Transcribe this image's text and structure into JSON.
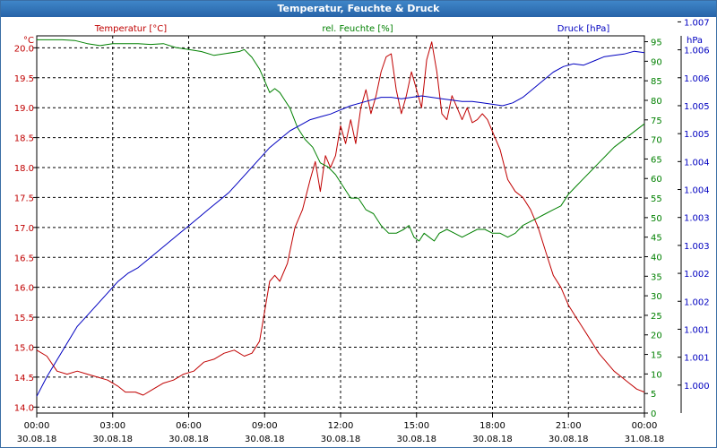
{
  "window": {
    "title": "Temperatur, Feuchte & Druck"
  },
  "chart_data": {
    "type": "line",
    "title": "Temperatur, Feuchte & Druck",
    "grid": true,
    "legend_position": "top",
    "colors": {
      "temperature": "#c00000",
      "humidity": "#008000",
      "pressure": "#0000c0",
      "axis": "#000000",
      "grid": "#000000"
    },
    "x_ticks": [
      {
        "h": 0,
        "time": "00:00",
        "date": "30.08.18"
      },
      {
        "h": 3,
        "time": "03:00",
        "date": "30.08.18"
      },
      {
        "h": 6,
        "time": "06:00",
        "date": "30.08.18"
      },
      {
        "h": 9,
        "time": "09:00",
        "date": "30.08.18"
      },
      {
        "h": 12,
        "time": "12:00",
        "date": "30.08.18"
      },
      {
        "h": 15,
        "time": "15:00",
        "date": "30.08.18"
      },
      {
        "h": 18,
        "time": "18:00",
        "date": "30.08.18"
      },
      {
        "h": 21,
        "time": "21:00",
        "date": "30.08.18"
      },
      {
        "h": 24,
        "time": "00:00",
        "date": "31.08.18"
      }
    ],
    "xlim": [
      0,
      24
    ],
    "axes": {
      "temperature": {
        "label": "Temperatur [°C]",
        "unit": "°C",
        "ylim": [
          13.9,
          20.2
        ],
        "ticks": [
          "14.0",
          "14.5",
          "15.0",
          "15.5",
          "16.0",
          "16.5",
          "17.0",
          "17.5",
          "18.0",
          "18.5",
          "19.0",
          "19.5",
          "20.0"
        ]
      },
      "humidity": {
        "label": "rel. Feuchte [%]",
        "unit": "%",
        "ylim": [
          0,
          96.5
        ],
        "ticks": [
          "0",
          "5",
          "10",
          "15",
          "20",
          "25",
          "30",
          "35",
          "40",
          "45",
          "50",
          "55",
          "60",
          "65",
          "70",
          "75",
          "80",
          "85",
          "90",
          "95"
        ]
      },
      "pressure": {
        "label": "Druck [hPa]",
        "unit": "hPa",
        "ylim": [
          0,
          13.5
        ],
        "ticks": [
          "1.000",
          "1.001",
          "1.001",
          "1.002",
          "1.002",
          "1.003",
          "1.003",
          "1.004",
          "1.004",
          "1.005",
          "1.005",
          "1.006",
          "1.006",
          "1.007"
        ]
      }
    },
    "series": [
      {
        "name": "Temperatur [°C]",
        "key": "temperature",
        "axis": "temperature",
        "points": [
          [
            0,
            14.95
          ],
          [
            0.4,
            14.85
          ],
          [
            0.8,
            14.6
          ],
          [
            1.2,
            14.55
          ],
          [
            1.6,
            14.6
          ],
          [
            2,
            14.55
          ],
          [
            2.4,
            14.5
          ],
          [
            2.8,
            14.45
          ],
          [
            3.2,
            14.35
          ],
          [
            3.5,
            14.25
          ],
          [
            3.9,
            14.25
          ],
          [
            4.2,
            14.2
          ],
          [
            4.6,
            14.3
          ],
          [
            5,
            14.4
          ],
          [
            5.4,
            14.45
          ],
          [
            5.8,
            14.55
          ],
          [
            6.2,
            14.6
          ],
          [
            6.6,
            14.75
          ],
          [
            7,
            14.8
          ],
          [
            7.4,
            14.9
          ],
          [
            7.8,
            14.95
          ],
          [
            8.2,
            14.85
          ],
          [
            8.5,
            14.9
          ],
          [
            8.8,
            15.1
          ],
          [
            9.0,
            15.6
          ],
          [
            9.2,
            16.1
          ],
          [
            9.4,
            16.2
          ],
          [
            9.6,
            16.1
          ],
          [
            9.9,
            16.4
          ],
          [
            10.2,
            17.0
          ],
          [
            10.5,
            17.3
          ],
          [
            10.8,
            17.8
          ],
          [
            11.0,
            18.1
          ],
          [
            11.2,
            17.6
          ],
          [
            11.4,
            18.2
          ],
          [
            11.6,
            18.0
          ],
          [
            11.8,
            18.2
          ],
          [
            12.0,
            18.7
          ],
          [
            12.2,
            18.4
          ],
          [
            12.4,
            18.8
          ],
          [
            12.6,
            18.4
          ],
          [
            12.8,
            19.0
          ],
          [
            13.0,
            19.3
          ],
          [
            13.2,
            18.9
          ],
          [
            13.4,
            19.2
          ],
          [
            13.6,
            19.6
          ],
          [
            13.8,
            19.85
          ],
          [
            14.0,
            19.9
          ],
          [
            14.2,
            19.3
          ],
          [
            14.4,
            18.9
          ],
          [
            14.6,
            19.2
          ],
          [
            14.8,
            19.6
          ],
          [
            15.0,
            19.3
          ],
          [
            15.2,
            19.0
          ],
          [
            15.4,
            19.8
          ],
          [
            15.6,
            20.1
          ],
          [
            15.8,
            19.6
          ],
          [
            16.0,
            18.9
          ],
          [
            16.2,
            18.8
          ],
          [
            16.4,
            19.2
          ],
          [
            16.6,
            19.0
          ],
          [
            16.8,
            18.8
          ],
          [
            17.0,
            19.0
          ],
          [
            17.2,
            18.75
          ],
          [
            17.4,
            18.8
          ],
          [
            17.6,
            18.9
          ],
          [
            17.8,
            18.8
          ],
          [
            18.0,
            18.6
          ],
          [
            18.3,
            18.3
          ],
          [
            18.6,
            17.8
          ],
          [
            18.9,
            17.6
          ],
          [
            19.2,
            17.5
          ],
          [
            19.5,
            17.3
          ],
          [
            19.8,
            17.0
          ],
          [
            20.1,
            16.6
          ],
          [
            20.4,
            16.2
          ],
          [
            20.7,
            16.0
          ],
          [
            21.0,
            15.7
          ],
          [
            21.3,
            15.5
          ],
          [
            21.6,
            15.3
          ],
          [
            21.9,
            15.1
          ],
          [
            22.2,
            14.9
          ],
          [
            22.5,
            14.75
          ],
          [
            22.8,
            14.6
          ],
          [
            23.1,
            14.5
          ],
          [
            23.4,
            14.4
          ],
          [
            23.7,
            14.3
          ],
          [
            24.0,
            14.25
          ]
        ]
      },
      {
        "name": "rel. Feuchte [%]",
        "key": "humidity",
        "axis": "humidity",
        "points": [
          [
            0,
            95.5
          ],
          [
            0.5,
            95.5
          ],
          [
            1.0,
            95.5
          ],
          [
            1.5,
            95.3
          ],
          [
            2.0,
            94.5
          ],
          [
            2.5,
            94
          ],
          [
            3.0,
            94.5
          ],
          [
            3.5,
            94.5
          ],
          [
            4.0,
            94.5
          ],
          [
            4.5,
            94.3
          ],
          [
            5.0,
            94.5
          ],
          [
            5.5,
            93.5
          ],
          [
            6.0,
            93
          ],
          [
            6.5,
            92.5
          ],
          [
            7.0,
            91.5
          ],
          [
            7.5,
            92
          ],
          [
            8.0,
            92.5
          ],
          [
            8.2,
            93
          ],
          [
            8.5,
            91
          ],
          [
            8.8,
            88
          ],
          [
            9.0,
            85
          ],
          [
            9.2,
            82
          ],
          [
            9.4,
            83
          ],
          [
            9.6,
            82
          ],
          [
            9.8,
            80
          ],
          [
            10.0,
            78
          ],
          [
            10.3,
            73
          ],
          [
            10.6,
            70
          ],
          [
            10.9,
            68
          ],
          [
            11.2,
            64
          ],
          [
            11.5,
            63
          ],
          [
            11.8,
            61
          ],
          [
            12.1,
            58
          ],
          [
            12.4,
            55
          ],
          [
            12.7,
            55
          ],
          [
            13.0,
            52
          ],
          [
            13.3,
            51
          ],
          [
            13.6,
            48
          ],
          [
            13.9,
            46
          ],
          [
            14.2,
            46
          ],
          [
            14.5,
            47
          ],
          [
            14.7,
            48
          ],
          [
            14.9,
            45
          ],
          [
            15.1,
            44
          ],
          [
            15.3,
            46
          ],
          [
            15.5,
            45
          ],
          [
            15.7,
            44
          ],
          [
            15.9,
            46
          ],
          [
            16.2,
            47
          ],
          [
            16.5,
            46
          ],
          [
            16.8,
            45
          ],
          [
            17.1,
            46
          ],
          [
            17.4,
            47
          ],
          [
            17.7,
            47
          ],
          [
            18.0,
            46
          ],
          [
            18.3,
            46
          ],
          [
            18.6,
            45
          ],
          [
            18.9,
            46
          ],
          [
            19.2,
            48
          ],
          [
            19.5,
            49
          ],
          [
            19.8,
            50
          ],
          [
            20.1,
            51
          ],
          [
            20.4,
            52
          ],
          [
            20.7,
            53
          ],
          [
            21.0,
            56
          ],
          [
            21.3,
            58
          ],
          [
            21.6,
            60
          ],
          [
            21.9,
            62
          ],
          [
            22.2,
            64
          ],
          [
            22.5,
            66
          ],
          [
            22.8,
            68
          ],
          [
            23.1,
            69.5
          ],
          [
            23.4,
            71
          ],
          [
            23.7,
            72.5
          ],
          [
            24.0,
            74
          ]
        ]
      },
      {
        "name": "Druck [hPa]",
        "key": "pressure",
        "axis": "pressure",
        "points": [
          [
            0,
            0.6
          ],
          [
            0.4,
            1.3
          ],
          [
            0.8,
            1.9
          ],
          [
            1.2,
            2.5
          ],
          [
            1.6,
            3.1
          ],
          [
            2.0,
            3.5
          ],
          [
            2.4,
            3.9
          ],
          [
            2.8,
            4.3
          ],
          [
            3.2,
            4.7
          ],
          [
            3.6,
            5.0
          ],
          [
            4.0,
            5.2
          ],
          [
            4.4,
            5.5
          ],
          [
            4.8,
            5.8
          ],
          [
            5.2,
            6.1
          ],
          [
            5.6,
            6.4
          ],
          [
            6.0,
            6.7
          ],
          [
            6.4,
            7.0
          ],
          [
            6.8,
            7.3
          ],
          [
            7.2,
            7.6
          ],
          [
            7.6,
            7.9
          ],
          [
            8.0,
            8.3
          ],
          [
            8.4,
            8.7
          ],
          [
            8.8,
            9.1
          ],
          [
            9.2,
            9.5
          ],
          [
            9.6,
            9.8
          ],
          [
            10.0,
            10.1
          ],
          [
            10.4,
            10.3
          ],
          [
            10.8,
            10.5
          ],
          [
            11.2,
            10.6
          ],
          [
            11.6,
            10.7
          ],
          [
            12.0,
            10.85
          ],
          [
            12.4,
            11.0
          ],
          [
            12.8,
            11.1
          ],
          [
            13.2,
            11.2
          ],
          [
            13.6,
            11.3
          ],
          [
            14.0,
            11.3
          ],
          [
            14.4,
            11.25
          ],
          [
            14.8,
            11.3
          ],
          [
            15.2,
            11.35
          ],
          [
            15.6,
            11.3
          ],
          [
            16.0,
            11.25
          ],
          [
            16.4,
            11.2
          ],
          [
            16.8,
            11.15
          ],
          [
            17.2,
            11.15
          ],
          [
            17.6,
            11.1
          ],
          [
            18.0,
            11.05
          ],
          [
            18.4,
            11.0
          ],
          [
            18.8,
            11.1
          ],
          [
            19.2,
            11.3
          ],
          [
            19.6,
            11.6
          ],
          [
            20.0,
            11.9
          ],
          [
            20.4,
            12.2
          ],
          [
            20.8,
            12.4
          ],
          [
            21.2,
            12.5
          ],
          [
            21.6,
            12.45
          ],
          [
            22.0,
            12.6
          ],
          [
            22.4,
            12.75
          ],
          [
            22.8,
            12.8
          ],
          [
            23.2,
            12.85
          ],
          [
            23.6,
            12.95
          ],
          [
            24.0,
            12.9
          ]
        ]
      }
    ]
  }
}
